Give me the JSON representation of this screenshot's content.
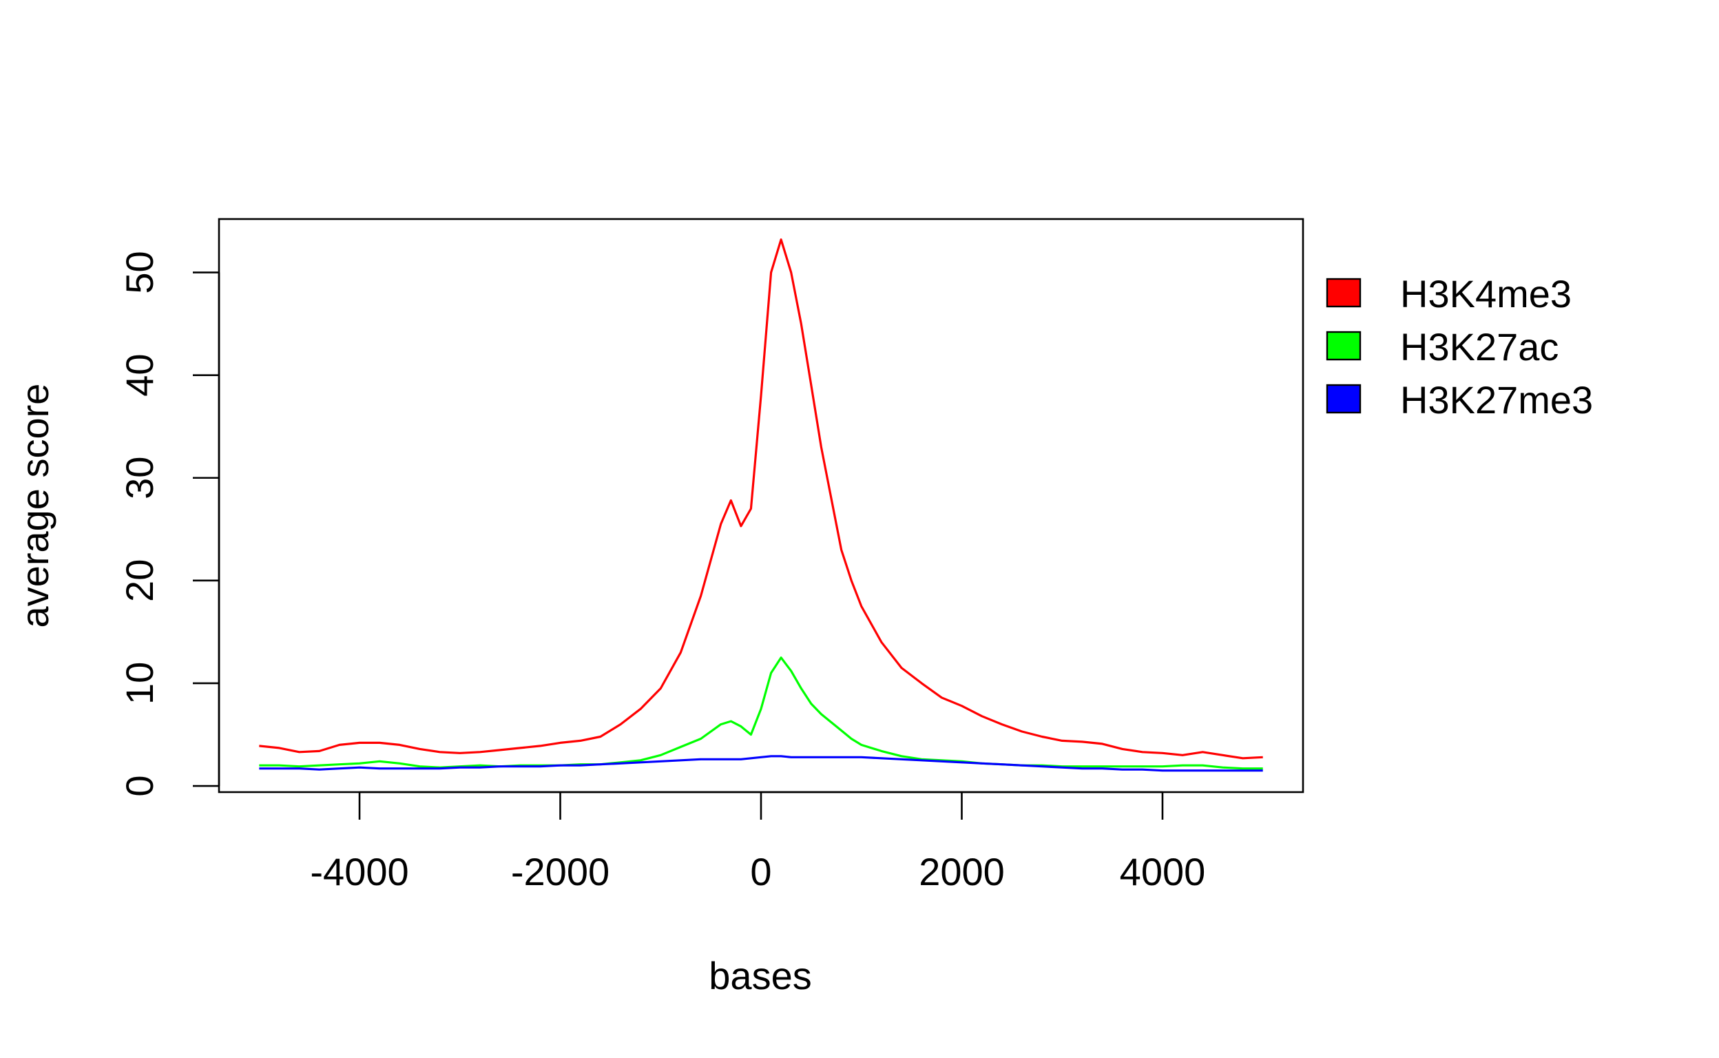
{
  "chart_data": {
    "type": "line",
    "title": "",
    "xlabel": "bases",
    "ylabel": "average score",
    "xlim": [
      -5400,
      5400
    ],
    "ylim": [
      -0.6,
      55.2
    ],
    "x_ticks": [
      -4000,
      -2000,
      0,
      2000,
      4000
    ],
    "x_tick_labels": [
      "-4000",
      "-2000",
      "0",
      "2000",
      "4000"
    ],
    "y_ticks": [
      0,
      10,
      20,
      30,
      40,
      50
    ],
    "y_tick_labels": [
      "0",
      "10",
      "20",
      "30",
      "40",
      "50"
    ],
    "grid": false,
    "legend_position": "right",
    "series": [
      {
        "name": "H3K4me3",
        "color": "#ff0000",
        "x": [
          -5000,
          -4800,
          -4600,
          -4400,
          -4200,
          -4000,
          -3800,
          -3600,
          -3400,
          -3200,
          -3000,
          -2800,
          -2600,
          -2400,
          -2200,
          -2000,
          -1800,
          -1600,
          -1400,
          -1200,
          -1000,
          -800,
          -600,
          -400,
          -300,
          -200,
          -100,
          0,
          100,
          200,
          300,
          400,
          500,
          600,
          700,
          800,
          900,
          1000,
          1200,
          1400,
          1600,
          1800,
          2000,
          2200,
          2400,
          2600,
          2800,
          3000,
          3200,
          3400,
          3600,
          3800,
          4000,
          4200,
          4400,
          4600,
          4800,
          5000
        ],
        "values": [
          3.9,
          3.7,
          3.3,
          3.4,
          4.0,
          4.2,
          4.2,
          4.0,
          3.6,
          3.3,
          3.2,
          3.3,
          3.5,
          3.7,
          3.9,
          4.2,
          4.4,
          4.8,
          6.0,
          7.5,
          9.5,
          13.0,
          18.5,
          25.5,
          27.8,
          25.3,
          27.0,
          38.0,
          50.0,
          53.2,
          50.0,
          45.0,
          39.0,
          33.0,
          28.0,
          23.0,
          20.0,
          17.5,
          14.0,
          11.5,
          10.0,
          8.6,
          7.8,
          6.8,
          6.0,
          5.3,
          4.8,
          4.4,
          4.3,
          4.1,
          3.6,
          3.3,
          3.2,
          3.0,
          3.3,
          3.0,
          2.7,
          2.8
        ]
      },
      {
        "name": "H3K27ac",
        "color": "#00ff00",
        "x": [
          -5000,
          -4800,
          -4600,
          -4400,
          -4200,
          -4000,
          -3800,
          -3600,
          -3400,
          -3200,
          -3000,
          -2800,
          -2600,
          -2400,
          -2200,
          -2000,
          -1800,
          -1600,
          -1400,
          -1200,
          -1000,
          -800,
          -600,
          -400,
          -300,
          -200,
          -100,
          0,
          100,
          200,
          300,
          400,
          500,
          600,
          700,
          800,
          900,
          1000,
          1200,
          1400,
          1600,
          1800,
          2000,
          2200,
          2400,
          2600,
          2800,
          3000,
          3200,
          3400,
          3600,
          3800,
          4000,
          4200,
          4400,
          4600,
          4800,
          5000
        ],
        "values": [
          2.0,
          2.0,
          1.9,
          2.0,
          2.1,
          2.2,
          2.4,
          2.2,
          1.9,
          1.8,
          1.9,
          2.0,
          1.9,
          2.0,
          2.0,
          2.0,
          2.1,
          2.1,
          2.3,
          2.5,
          3.0,
          3.8,
          4.6,
          6.0,
          6.3,
          5.8,
          5.0,
          7.5,
          11.0,
          12.5,
          11.2,
          9.5,
          8.0,
          7.0,
          6.2,
          5.4,
          4.6,
          4.0,
          3.4,
          2.9,
          2.6,
          2.5,
          2.4,
          2.2,
          2.1,
          2.0,
          2.0,
          1.9,
          1.9,
          1.9,
          1.9,
          1.9,
          1.9,
          2.0,
          2.0,
          1.8,
          1.7,
          1.7
        ]
      },
      {
        "name": "H3K27me3",
        "color": "#0000ff",
        "x": [
          -5000,
          -4800,
          -4600,
          -4400,
          -4200,
          -4000,
          -3800,
          -3600,
          -3400,
          -3200,
          -3000,
          -2800,
          -2600,
          -2400,
          -2200,
          -2000,
          -1800,
          -1600,
          -1400,
          -1200,
          -1000,
          -800,
          -600,
          -400,
          -300,
          -200,
          -100,
          0,
          100,
          200,
          300,
          400,
          500,
          600,
          700,
          800,
          900,
          1000,
          1200,
          1400,
          1600,
          1800,
          2000,
          2200,
          2400,
          2600,
          2800,
          3000,
          3200,
          3400,
          3600,
          3800,
          4000,
          4200,
          4400,
          4600,
          4800,
          5000
        ],
        "values": [
          1.7,
          1.7,
          1.7,
          1.6,
          1.7,
          1.8,
          1.7,
          1.7,
          1.7,
          1.7,
          1.8,
          1.8,
          1.9,
          1.9,
          1.9,
          2.0,
          2.0,
          2.1,
          2.2,
          2.3,
          2.4,
          2.5,
          2.6,
          2.6,
          2.6,
          2.6,
          2.7,
          2.8,
          2.9,
          2.9,
          2.8,
          2.8,
          2.8,
          2.8,
          2.8,
          2.8,
          2.8,
          2.8,
          2.7,
          2.6,
          2.5,
          2.4,
          2.3,
          2.2,
          2.1,
          2.0,
          1.9,
          1.8,
          1.7,
          1.7,
          1.6,
          1.6,
          1.5,
          1.5,
          1.5,
          1.5,
          1.5,
          1.5
        ]
      }
    ]
  }
}
